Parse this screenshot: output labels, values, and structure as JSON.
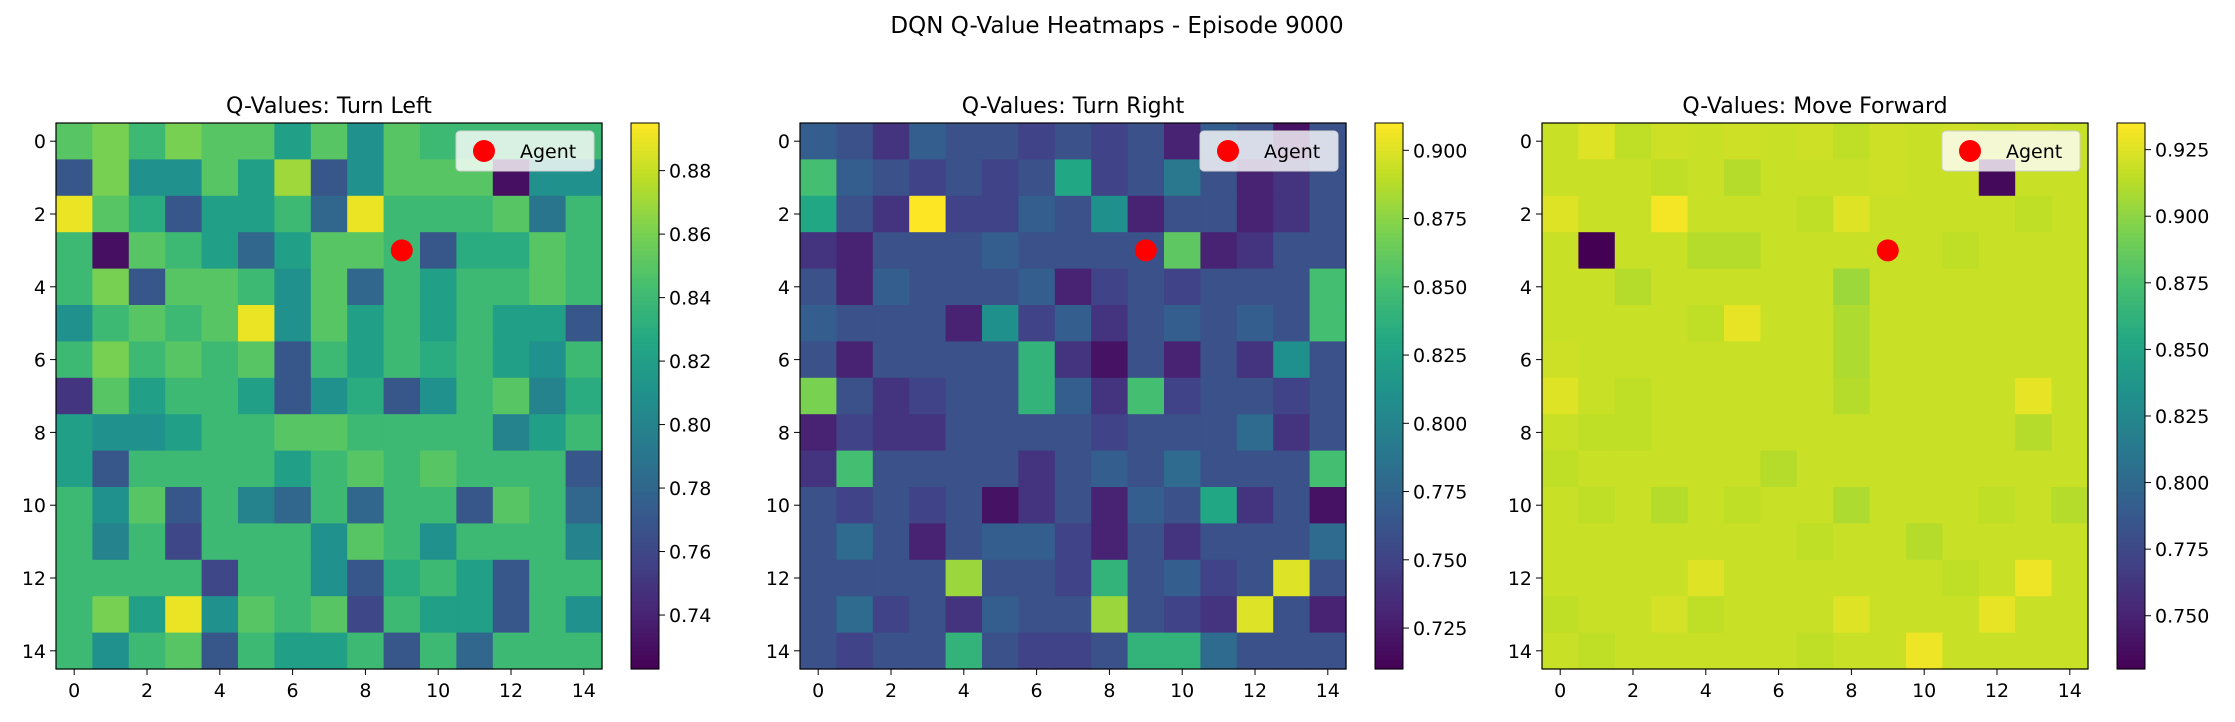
{
  "chart_data": {
    "type": "heatmap",
    "title": "DQN Q-Value Heatmaps - Episode 9000",
    "panels": [
      {
        "title": "Q-Values: Turn Left",
        "colormap": "viridis",
        "vmin": 0.723,
        "vmax": 0.895,
        "colorbar_ticks": [
          0.74,
          0.76,
          0.78,
          0.8,
          0.82,
          0.84,
          0.86,
          0.88
        ],
        "colorbar_tick_labels": [
          "0.74",
          "0.76",
          "0.78",
          "0.80",
          "0.82",
          "0.84",
          "0.86",
          "0.88"
        ],
        "legend": {
          "label": "Agent",
          "placement": "upper right"
        },
        "agent": {
          "x": 9,
          "y": 3
        },
        "values": [
          [
            0.85,
            0.86,
            0.84,
            0.86,
            0.85,
            0.85,
            0.82,
            0.85,
            0.81,
            0.85,
            0.84,
            0.84,
            0.84,
            0.84,
            0.84
          ],
          [
            0.77,
            0.86,
            0.81,
            0.81,
            0.85,
            0.82,
            0.87,
            0.77,
            0.81,
            0.85,
            0.85,
            0.85,
            0.73,
            0.81,
            0.81
          ],
          [
            0.89,
            0.85,
            0.83,
            0.77,
            0.82,
            0.82,
            0.84,
            0.78,
            0.89,
            0.84,
            0.84,
            0.84,
            0.85,
            0.79,
            0.84
          ],
          [
            0.84,
            0.73,
            0.85,
            0.84,
            0.82,
            0.78,
            0.82,
            0.85,
            0.85,
            0.84,
            0.77,
            0.83,
            0.83,
            0.85,
            0.84
          ],
          [
            0.84,
            0.86,
            0.77,
            0.85,
            0.85,
            0.84,
            0.81,
            0.85,
            0.78,
            0.84,
            0.82,
            0.84,
            0.84,
            0.85,
            0.84
          ],
          [
            0.81,
            0.84,
            0.85,
            0.84,
            0.85,
            0.89,
            0.81,
            0.85,
            0.82,
            0.84,
            0.82,
            0.84,
            0.82,
            0.82,
            0.77
          ],
          [
            0.84,
            0.86,
            0.84,
            0.85,
            0.84,
            0.85,
            0.77,
            0.84,
            0.82,
            0.84,
            0.83,
            0.84,
            0.82,
            0.81,
            0.84
          ],
          [
            0.75,
            0.85,
            0.82,
            0.84,
            0.84,
            0.82,
            0.77,
            0.81,
            0.83,
            0.77,
            0.81,
            0.84,
            0.85,
            0.8,
            0.83
          ],
          [
            0.82,
            0.81,
            0.81,
            0.82,
            0.84,
            0.84,
            0.85,
            0.85,
            0.84,
            0.84,
            0.84,
            0.84,
            0.8,
            0.82,
            0.84
          ],
          [
            0.82,
            0.77,
            0.84,
            0.84,
            0.84,
            0.84,
            0.82,
            0.84,
            0.85,
            0.84,
            0.85,
            0.84,
            0.84,
            0.84,
            0.77
          ],
          [
            0.84,
            0.81,
            0.85,
            0.77,
            0.84,
            0.8,
            0.78,
            0.84,
            0.78,
            0.84,
            0.84,
            0.77,
            0.85,
            0.84,
            0.78
          ],
          [
            0.84,
            0.8,
            0.84,
            0.76,
            0.84,
            0.84,
            0.84,
            0.81,
            0.85,
            0.84,
            0.81,
            0.84,
            0.84,
            0.84,
            0.8
          ],
          [
            0.84,
            0.84,
            0.84,
            0.84,
            0.76,
            0.84,
            0.84,
            0.81,
            0.77,
            0.83,
            0.84,
            0.82,
            0.77,
            0.84,
            0.84
          ],
          [
            0.84,
            0.86,
            0.82,
            0.89,
            0.81,
            0.85,
            0.84,
            0.85,
            0.76,
            0.84,
            0.82,
            0.82,
            0.77,
            0.84,
            0.81
          ],
          [
            0.84,
            0.81,
            0.84,
            0.85,
            0.77,
            0.84,
            0.82,
            0.82,
            0.84,
            0.77,
            0.84,
            0.78,
            0.84,
            0.84,
            0.84
          ]
        ]
      },
      {
        "title": "Q-Values: Turn Right",
        "colormap": "viridis",
        "vmin": 0.71,
        "vmax": 0.91,
        "colorbar_ticks": [
          0.725,
          0.75,
          0.775,
          0.8,
          0.825,
          0.85,
          0.875,
          0.9
        ],
        "colorbar_tick_labels": [
          "0.725",
          "0.750",
          "0.775",
          "0.800",
          "0.825",
          "0.850",
          "0.875",
          "0.900"
        ],
        "legend": {
          "label": "Agent",
          "placement": "upper right"
        },
        "agent": {
          "x": 9,
          "y": 3
        },
        "values": [
          [
            0.77,
            0.76,
            0.74,
            0.77,
            0.76,
            0.76,
            0.75,
            0.76,
            0.75,
            0.76,
            0.73,
            0.77,
            0.76,
            0.72,
            0.76
          ],
          [
            0.85,
            0.77,
            0.76,
            0.75,
            0.76,
            0.75,
            0.76,
            0.83,
            0.75,
            0.76,
            0.79,
            0.76,
            0.73,
            0.74,
            0.76
          ],
          [
            0.83,
            0.76,
            0.74,
            0.91,
            0.75,
            0.75,
            0.77,
            0.76,
            0.81,
            0.73,
            0.76,
            0.76,
            0.73,
            0.74,
            0.76
          ],
          [
            0.74,
            0.73,
            0.76,
            0.76,
            0.76,
            0.77,
            0.76,
            0.76,
            0.76,
            0.76,
            0.86,
            0.73,
            0.74,
            0.76,
            0.76
          ],
          [
            0.76,
            0.73,
            0.77,
            0.76,
            0.76,
            0.76,
            0.77,
            0.73,
            0.75,
            0.76,
            0.75,
            0.76,
            0.76,
            0.76,
            0.85
          ],
          [
            0.77,
            0.76,
            0.76,
            0.76,
            0.73,
            0.81,
            0.75,
            0.77,
            0.74,
            0.76,
            0.77,
            0.76,
            0.77,
            0.76,
            0.85
          ],
          [
            0.76,
            0.73,
            0.76,
            0.76,
            0.76,
            0.76,
            0.84,
            0.74,
            0.72,
            0.76,
            0.73,
            0.76,
            0.74,
            0.81,
            0.76
          ],
          [
            0.87,
            0.76,
            0.74,
            0.75,
            0.76,
            0.76,
            0.84,
            0.77,
            0.74,
            0.85,
            0.75,
            0.76,
            0.76,
            0.75,
            0.76
          ],
          [
            0.73,
            0.75,
            0.74,
            0.74,
            0.76,
            0.76,
            0.76,
            0.76,
            0.75,
            0.76,
            0.76,
            0.76,
            0.78,
            0.74,
            0.76
          ],
          [
            0.74,
            0.85,
            0.76,
            0.76,
            0.76,
            0.76,
            0.74,
            0.76,
            0.77,
            0.76,
            0.78,
            0.76,
            0.76,
            0.76,
            0.85
          ],
          [
            0.76,
            0.75,
            0.76,
            0.75,
            0.76,
            0.72,
            0.74,
            0.76,
            0.73,
            0.77,
            0.76,
            0.83,
            0.74,
            0.76,
            0.72
          ],
          [
            0.76,
            0.78,
            0.76,
            0.73,
            0.76,
            0.77,
            0.77,
            0.75,
            0.73,
            0.76,
            0.74,
            0.76,
            0.76,
            0.76,
            0.78
          ],
          [
            0.76,
            0.76,
            0.76,
            0.76,
            0.88,
            0.76,
            0.76,
            0.75,
            0.84,
            0.76,
            0.77,
            0.75,
            0.76,
            0.9,
            0.76
          ],
          [
            0.76,
            0.78,
            0.75,
            0.76,
            0.74,
            0.77,
            0.76,
            0.76,
            0.88,
            0.76,
            0.75,
            0.74,
            0.9,
            0.76,
            0.73
          ],
          [
            0.76,
            0.75,
            0.76,
            0.76,
            0.84,
            0.76,
            0.75,
            0.75,
            0.76,
            0.84,
            0.84,
            0.78,
            0.76,
            0.76,
            0.76
          ]
        ]
      },
      {
        "title": "Q-Values: Move Forward",
        "colormap": "viridis",
        "vmin": 0.73,
        "vmax": 0.935,
        "colorbar_ticks": [
          0.75,
          0.775,
          0.8,
          0.825,
          0.85,
          0.875,
          0.9,
          0.925
        ],
        "colorbar_tick_labels": [
          "0.750",
          "0.775",
          "0.800",
          "0.825",
          "0.850",
          "0.875",
          "0.900",
          "0.925"
        ],
        "legend": {
          "label": "Agent",
          "placement": "upper right"
        },
        "agent": {
          "x": 9,
          "y": 3
        },
        "values": [
          [
            0.918,
            0.925,
            0.915,
            0.92,
            0.918,
            0.92,
            0.918,
            0.92,
            0.915,
            0.92,
            0.918,
            0.92,
            0.918,
            0.92,
            0.918
          ],
          [
            0.918,
            0.918,
            0.918,
            0.915,
            0.918,
            0.912,
            0.918,
            0.918,
            0.918,
            0.92,
            0.918,
            0.918,
            0.735,
            0.918,
            0.918
          ],
          [
            0.925,
            0.918,
            0.918,
            0.932,
            0.918,
            0.918,
            0.918,
            0.915,
            0.925,
            0.918,
            0.918,
            0.918,
            0.918,
            0.915,
            0.918
          ],
          [
            0.918,
            0.73,
            0.918,
            0.918,
            0.912,
            0.912,
            0.918,
            0.918,
            0.918,
            0.918,
            0.918,
            0.915,
            0.918,
            0.918,
            0.918
          ],
          [
            0.918,
            0.918,
            0.912,
            0.918,
            0.918,
            0.918,
            0.918,
            0.918,
            0.905,
            0.918,
            0.918,
            0.918,
            0.918,
            0.918,
            0.918
          ],
          [
            0.918,
            0.918,
            0.918,
            0.918,
            0.915,
            0.928,
            0.918,
            0.918,
            0.91,
            0.918,
            0.918,
            0.918,
            0.918,
            0.918,
            0.918
          ],
          [
            0.92,
            0.918,
            0.918,
            0.918,
            0.918,
            0.918,
            0.918,
            0.918,
            0.91,
            0.918,
            0.918,
            0.918,
            0.918,
            0.918,
            0.918
          ],
          [
            0.925,
            0.918,
            0.915,
            0.918,
            0.918,
            0.918,
            0.918,
            0.918,
            0.912,
            0.918,
            0.918,
            0.918,
            0.918,
            0.928,
            0.918
          ],
          [
            0.918,
            0.915,
            0.915,
            0.918,
            0.918,
            0.918,
            0.918,
            0.918,
            0.918,
            0.918,
            0.918,
            0.918,
            0.918,
            0.912,
            0.918
          ],
          [
            0.915,
            0.918,
            0.918,
            0.918,
            0.918,
            0.918,
            0.912,
            0.918,
            0.918,
            0.918,
            0.918,
            0.918,
            0.918,
            0.918,
            0.918
          ],
          [
            0.918,
            0.915,
            0.918,
            0.912,
            0.918,
            0.915,
            0.918,
            0.918,
            0.91,
            0.918,
            0.918,
            0.918,
            0.915,
            0.918,
            0.912
          ],
          [
            0.918,
            0.918,
            0.918,
            0.918,
            0.918,
            0.918,
            0.918,
            0.915,
            0.918,
            0.918,
            0.912,
            0.918,
            0.918,
            0.918,
            0.918
          ],
          [
            0.918,
            0.918,
            0.918,
            0.918,
            0.925,
            0.918,
            0.918,
            0.918,
            0.918,
            0.918,
            0.918,
            0.915,
            0.918,
            0.93,
            0.918
          ],
          [
            0.915,
            0.918,
            0.918,
            0.922,
            0.915,
            0.918,
            0.918,
            0.918,
            0.925,
            0.918,
            0.918,
            0.918,
            0.928,
            0.918,
            0.918
          ],
          [
            0.918,
            0.915,
            0.918,
            0.918,
            0.918,
            0.918,
            0.918,
            0.915,
            0.918,
            0.918,
            0.93,
            0.918,
            0.918,
            0.918,
            0.918
          ]
        ]
      }
    ],
    "x_tick_labels": [
      "0",
      "2",
      "4",
      "6",
      "8",
      "10",
      "12",
      "14"
    ],
    "y_tick_labels": [
      "0",
      "2",
      "4",
      "6",
      "8",
      "10",
      "12",
      "14"
    ],
    "xlim": [
      -0.5,
      14.5
    ],
    "ylim": [
      14.5,
      -0.5
    ],
    "grid": false,
    "agent_marker_color": "#ff0000"
  }
}
